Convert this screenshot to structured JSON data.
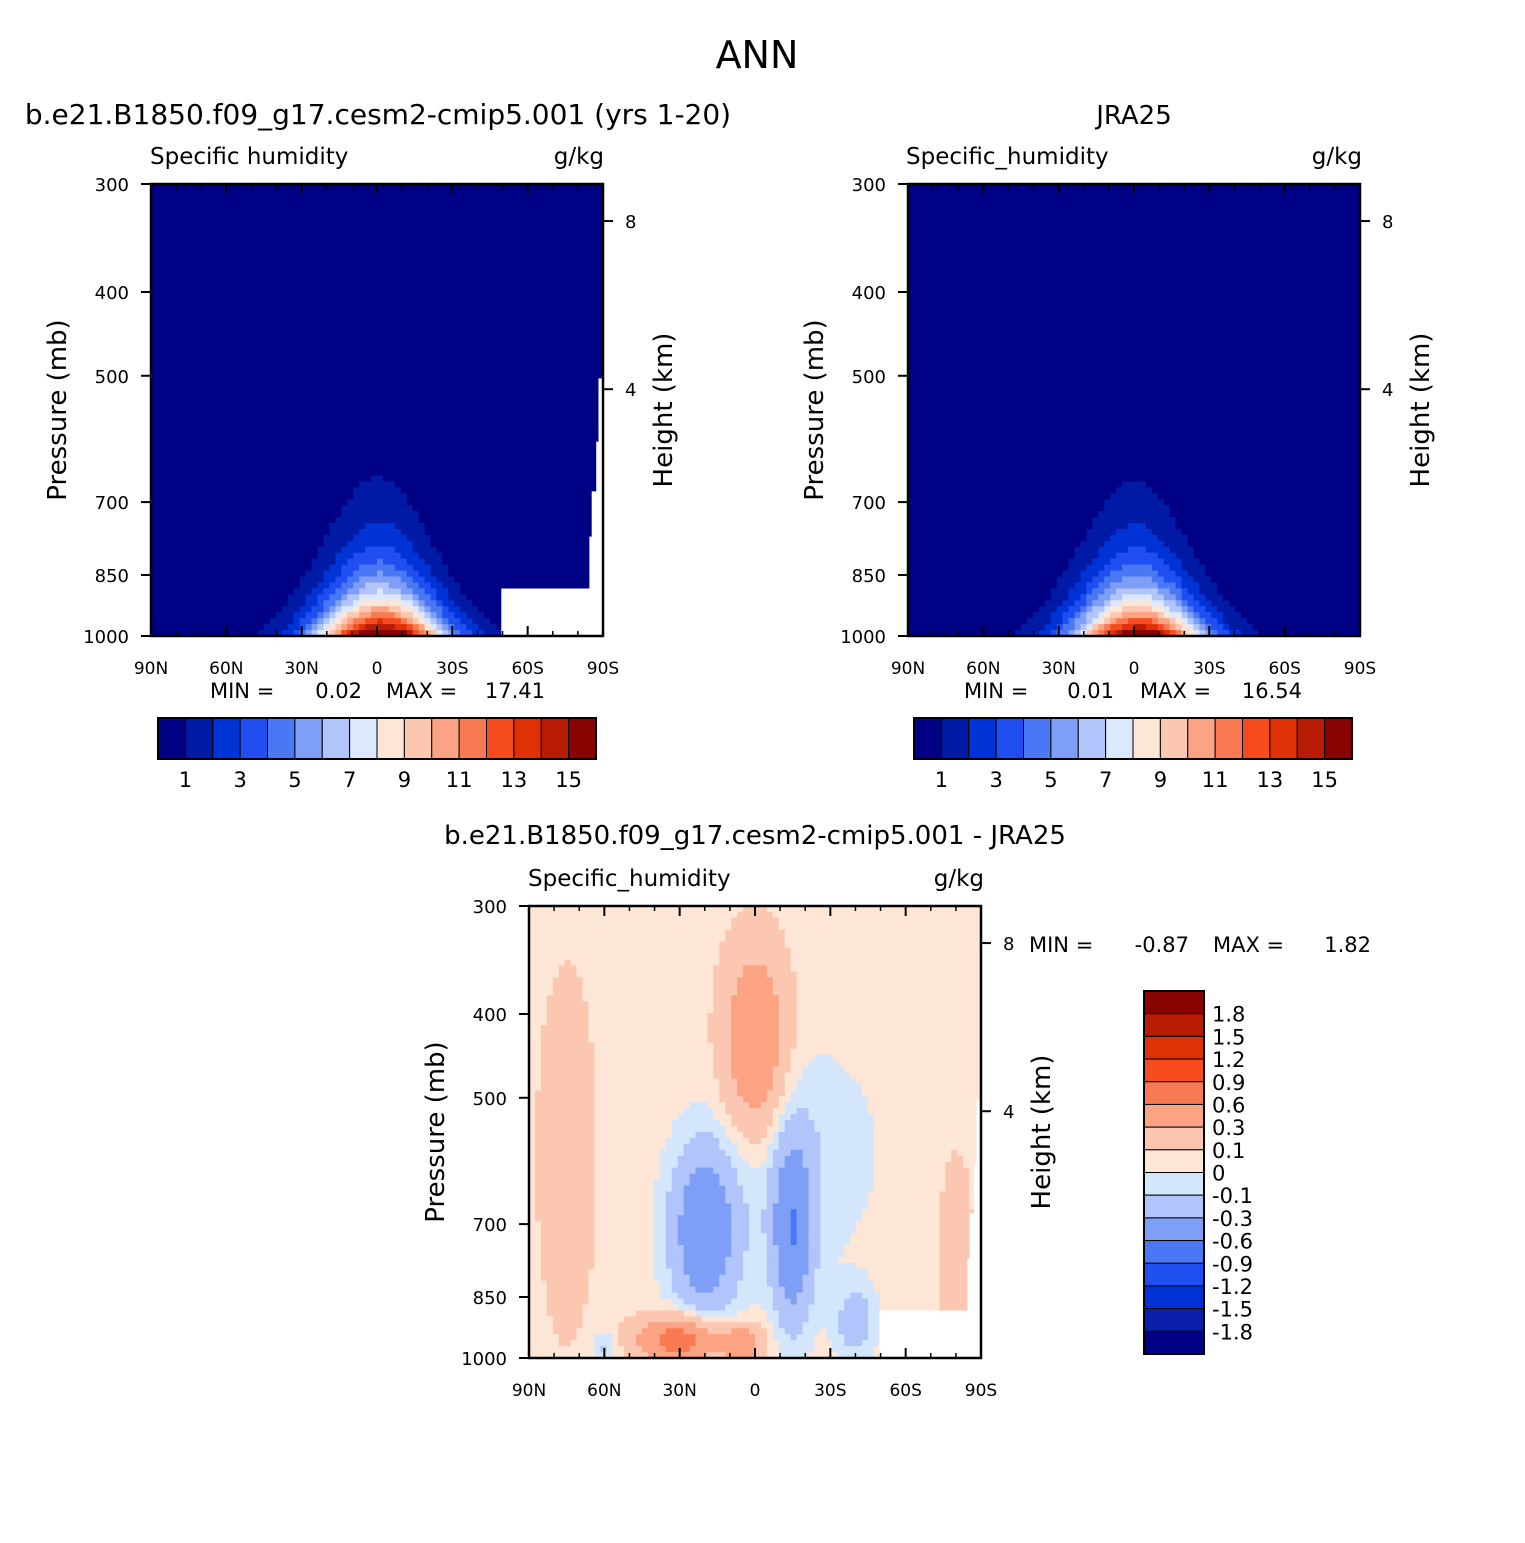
{
  "figure": {
    "title": "ANN"
  },
  "colors": {
    "abs_levels": [
      "#000085",
      "#001aa6",
      "#0033d6",
      "#1f4ff0",
      "#4a78f5",
      "#7f9ff7",
      "#b1c5fa",
      "#dbe8fd",
      "#fde6d6",
      "#fcc7b0",
      "#fba382",
      "#f97a52",
      "#f74d1e",
      "#e03005",
      "#b81c04",
      "#8a0303"
    ],
    "diff_levels": [
      "#000085",
      "#0a20aa",
      "#0033d6",
      "#1f4ff0",
      "#4a78f5",
      "#7f9ff7",
      "#b1c5fa",
      "#d4e6fc",
      "#fde6d6",
      "#fcc7b0",
      "#fba382",
      "#f97a52",
      "#f74d1e",
      "#e03005",
      "#b81c04",
      "#8a0303"
    ]
  },
  "chart_data": [
    {
      "type": "heatmap",
      "title": "b.e21.B1850.f09_g17.cesm2-cmip5.001 (yrs 1-20)",
      "variable_label": "Specific humidity",
      "units": "g/kg",
      "ylabel": "Pressure (mb)",
      "y2label": "Height (km)",
      "x_ticks": [
        "90N",
        "60N",
        "30N",
        "0",
        "30S",
        "60S",
        "90S"
      ],
      "y_ticks": [
        "300",
        "400",
        "500",
        "700",
        "850",
        "1000"
      ],
      "y2_ticks": [
        "8",
        "4"
      ],
      "min_label": "MIN =",
      "min_value": "0.02",
      "max_label": "MAX =",
      "max_value": "17.41",
      "colorbar_labels": [
        "1",
        "3",
        "5",
        "7",
        "9",
        "11",
        "13",
        "15"
      ],
      "peak": 17.41,
      "masked": true
    },
    {
      "type": "heatmap",
      "title": "JRA25",
      "variable_label": "Specific_humidity",
      "units": "g/kg",
      "ylabel": "Pressure (mb)",
      "y2label": "Height (km)",
      "x_ticks": [
        "90N",
        "60N",
        "30N",
        "0",
        "30S",
        "60S",
        "90S"
      ],
      "y_ticks": [
        "300",
        "400",
        "500",
        "700",
        "850",
        "1000"
      ],
      "y2_ticks": [
        "8",
        "4"
      ],
      "min_label": "MIN =",
      "min_value": "0.01",
      "max_label": "MAX =",
      "max_value": "16.54",
      "colorbar_labels": [
        "1",
        "3",
        "5",
        "7",
        "9",
        "11",
        "13",
        "15"
      ],
      "peak": 16.54,
      "masked": false
    },
    {
      "type": "heatmap",
      "title": "b.e21.B1850.f09_g17.cesm2-cmip5.001 - JRA25",
      "variable_label": "Specific_humidity",
      "units": "g/kg",
      "ylabel": "Pressure (mb)",
      "y2label": "Height (km)",
      "x_ticks": [
        "90N",
        "60N",
        "30N",
        "0",
        "30S",
        "60S",
        "90S"
      ],
      "y_ticks": [
        "300",
        "400",
        "500",
        "700",
        "850",
        "1000"
      ],
      "y2_ticks": [
        "8",
        "4"
      ],
      "min_label": "MIN =",
      "min_value": "-0.87",
      "max_label": "MAX =",
      "max_value": "1.82",
      "colorbar_labels": [
        "1.8",
        "1.5",
        "1.2",
        "0.9",
        "0.6",
        "0.3",
        "0.1",
        "0",
        "-0.1",
        "-0.3",
        "-0.6",
        "-0.9",
        "-1.2",
        "-1.5",
        "-1.8"
      ]
    }
  ]
}
